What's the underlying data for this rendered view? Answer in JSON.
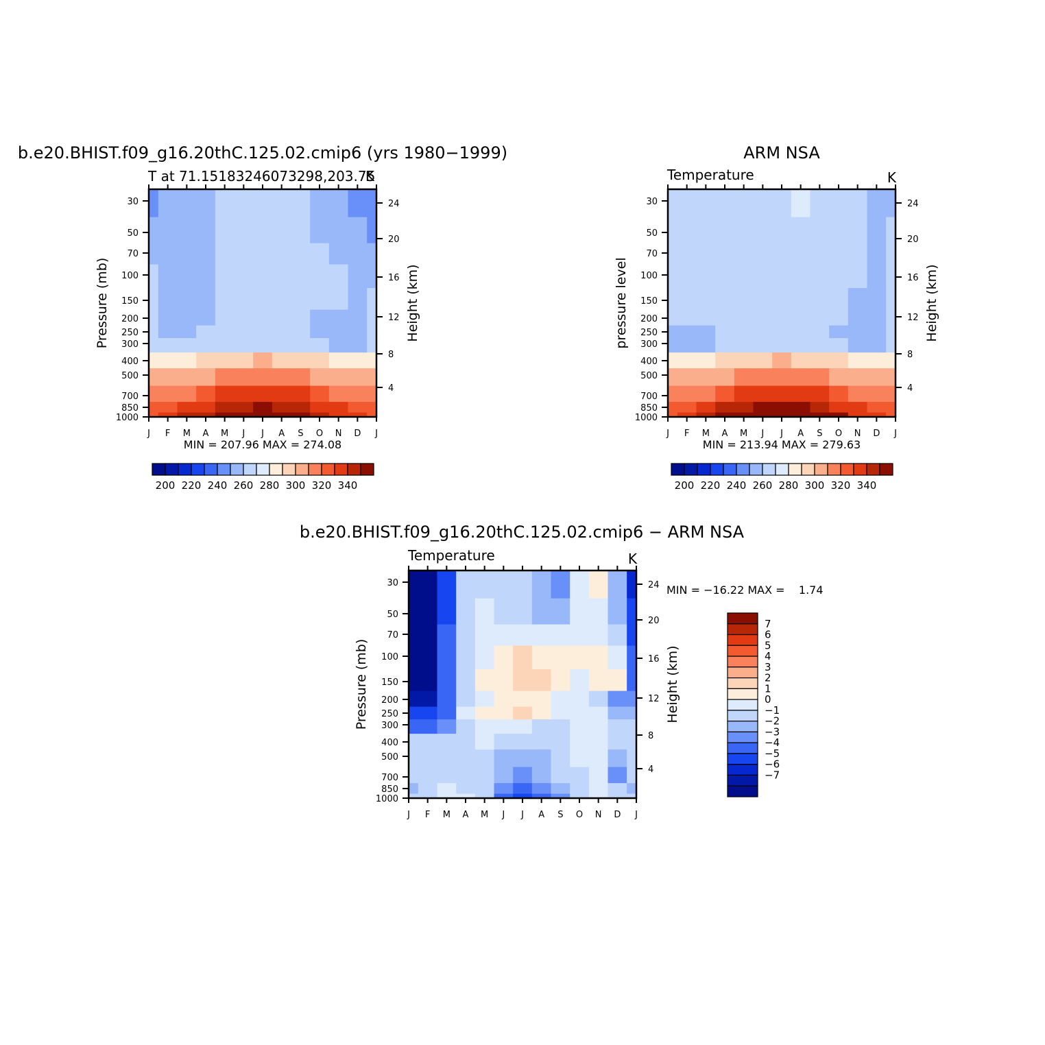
{
  "palette": [
    "#000e8c",
    "#0219a8",
    "#0628d0",
    "#1746f0",
    "#3a66f5",
    "#6890f8",
    "#98b8fa",
    "#c1d6fb",
    "#deebfc",
    "#fdeedc",
    "#fcd4b8",
    "#fbae8c",
    "#f9825c",
    "#f45a30",
    "#e23a12",
    "#b82608",
    "#8a0e02"
  ],
  "chart_data": [
    {
      "type": "contour",
      "title": "b.e20.BHIST.f09_g16.20thC.125.02.cmip6 (yrs 1980−1999)",
      "subtitle_left": "T at 71.15183246073298,203.75",
      "subtitle_right": "K",
      "ylabel": "Pressure (mb)",
      "ylabel_right": "Height (km)",
      "x_ticks": [
        "J",
        "F",
        "M",
        "A",
        "M",
        "J",
        "J",
        "A",
        "S",
        "O",
        "N",
        "D",
        "J"
      ],
      "y_ticks": [
        "30",
        "50",
        "70",
        "100",
        "150",
        "200",
        "250",
        "300",
        "400",
        "500",
        "700",
        "850",
        "1000"
      ],
      "y_ticks_right": [
        "24",
        "20",
        "16",
        "12",
        "8",
        "4"
      ],
      "minmax": "MIN = 207.96 MAX = 274.08",
      "colorbar_labels": [
        "200",
        "220",
        "240",
        "260",
        "280",
        "300",
        "320",
        "340"
      ],
      "x": [
        1,
        2,
        3,
        4,
        5,
        6,
        7,
        8,
        9,
        10,
        11,
        12,
        13
      ],
      "levels_mb": [
        1000,
        850,
        700,
        500,
        400,
        300,
        250,
        200,
        150,
        100,
        70,
        50,
        30
      ],
      "values": [
        [
          259,
          262,
          266,
          269,
          271,
          273,
          274,
          273,
          270,
          267,
          264,
          261,
          259
        ],
        [
          255,
          257,
          261,
          264,
          267,
          269,
          270,
          269,
          266,
          263,
          260,
          257,
          255
        ],
        [
          251,
          251,
          254,
          258,
          261,
          263,
          264,
          263,
          260,
          257,
          253,
          250,
          251
        ],
        [
          245,
          245,
          247,
          249,
          251,
          253,
          254,
          253,
          251,
          249,
          247,
          245,
          245
        ],
        [
          238,
          238,
          238,
          240,
          242,
          244,
          245,
          244,
          242,
          240,
          238,
          237,
          238
        ],
        [
          226,
          225,
          225,
          226,
          229,
          229,
          228,
          228,
          227,
          226,
          224,
          224,
          226
        ],
        [
          225,
          224,
          224,
          225,
          229,
          229,
          229,
          228,
          226,
          224,
          222,
          222,
          225
        ],
        [
          225,
          224,
          224,
          224,
          229,
          229,
          229,
          229,
          228,
          224,
          222,
          222,
          225
        ],
        [
          225,
          224,
          224,
          224,
          228,
          229,
          229,
          229,
          228,
          227,
          226,
          222,
          225
        ],
        [
          225,
          224,
          224,
          224,
          228,
          228,
          228,
          228,
          228,
          228,
          226,
          223,
          224
        ],
        [
          224,
          224,
          224,
          224,
          228,
          228,
          228,
          228,
          228,
          226,
          224,
          222,
          221
        ],
        [
          222,
          224,
          224,
          224,
          228,
          228,
          228,
          228,
          228,
          224,
          222,
          220,
          218
        ],
        [
          219,
          223,
          224,
          224,
          228,
          228,
          228,
          228,
          228,
          224,
          222,
          219,
          217
        ]
      ],
      "contour_levels": [
        195,
        200,
        205,
        210,
        215,
        220,
        225,
        230,
        235,
        240,
        245,
        250,
        255,
        260,
        265,
        270,
        275
      ]
    },
    {
      "type": "contour",
      "title": "ARM NSA",
      "subtitle_left": "Temperature",
      "subtitle_right": "K",
      "ylabel": "pressure level",
      "ylabel_right": "Height (km)",
      "x_ticks": [
        "J",
        "F",
        "M",
        "A",
        "M",
        "J",
        "J",
        "A",
        "S",
        "O",
        "N",
        "D",
        "J"
      ],
      "y_ticks": [
        "30",
        "50",
        "70",
        "100",
        "150",
        "200",
        "250",
        "300",
        "400",
        "500",
        "700",
        "850",
        "1000"
      ],
      "y_ticks_right": [
        "24",
        "20",
        "16",
        "12",
        "8",
        "4"
      ],
      "minmax": "MIN = 213.94 MAX = 279.63",
      "colorbar_labels": [
        "200",
        "220",
        "240",
        "260",
        "280",
        "300",
        "320",
        "340"
      ],
      "x": [
        1,
        2,
        3,
        4,
        5,
        6,
        7,
        8,
        9,
        10,
        11,
        12,
        13
      ],
      "levels_mb": [
        1000,
        850,
        700,
        500,
        400,
        300,
        250,
        200,
        150,
        100,
        70,
        50,
        30
      ],
      "values": [
        [
          258,
          262,
          266,
          270,
          273,
          276,
          278,
          277,
          275,
          270,
          264,
          260,
          258
        ],
        [
          255,
          257,
          261,
          265,
          268,
          271,
          272,
          271,
          268,
          264,
          260,
          257,
          255
        ],
        [
          252,
          252,
          254,
          257,
          261,
          263,
          264,
          263,
          261,
          258,
          254,
          252,
          252
        ],
        [
          246,
          246,
          247,
          249,
          251,
          253,
          254,
          253,
          251,
          249,
          247,
          246,
          246
        ],
        [
          239,
          239,
          239,
          240,
          242,
          244,
          245,
          244,
          242,
          240,
          238,
          238,
          239
        ],
        [
          223,
          222,
          222,
          226,
          229,
          229,
          229,
          229,
          228,
          225,
          224,
          224,
          226
        ],
        [
          224,
          222,
          222,
          226,
          229,
          229,
          229,
          229,
          228,
          224,
          224,
          224,
          226
        ],
        [
          225,
          225,
          226,
          228,
          229,
          229,
          229,
          229,
          229,
          225,
          224,
          224,
          226
        ],
        [
          228,
          228,
          228,
          228,
          229,
          229,
          229,
          229,
          229,
          229,
          224,
          224,
          226
        ],
        [
          228,
          228,
          228,
          228,
          229,
          229,
          229,
          229,
          229,
          229,
          225,
          224,
          226
        ],
        [
          228,
          228,
          228,
          228,
          229,
          229,
          229,
          229,
          229,
          229,
          225,
          224,
          226
        ],
        [
          228,
          228,
          228,
          228,
          229,
          229,
          229,
          229,
          229,
          229,
          225,
          224,
          225
        ],
        [
          228,
          228,
          228,
          228,
          229,
          229,
          229,
          230,
          229,
          229,
          225,
          224,
          224
        ]
      ],
      "contour_levels": [
        195,
        200,
        205,
        210,
        215,
        220,
        225,
        230,
        235,
        240,
        245,
        250,
        255,
        260,
        265,
        270,
        275
      ]
    },
    {
      "type": "contour",
      "title": "b.e20.BHIST.f09_g16.20thC.125.02.cmip6 − ARM NSA",
      "subtitle_left": "Temperature",
      "subtitle_right": "K",
      "ylabel": "Pressure (mb)",
      "ylabel_right": "Height (km)",
      "x_ticks": [
        "J",
        "F",
        "M",
        "A",
        "M",
        "J",
        "J",
        "A",
        "S",
        "O",
        "N",
        "D",
        "J"
      ],
      "y_ticks": [
        "30",
        "50",
        "70",
        "100",
        "150",
        "200",
        "250",
        "300",
        "400",
        "500",
        "700",
        "850",
        "1000"
      ],
      "y_ticks_right": [
        "24",
        "20",
        "16",
        "12",
        "8",
        "4"
      ],
      "minmax": "MIN = −16.22 MAX =    1.74",
      "colorbar_labels": [
        "7",
        "6",
        "5",
        "4",
        "3",
        "2",
        "1",
        "0",
        "−1",
        "−2",
        "−3",
        "−4",
        "−5",
        "−6",
        "−7"
      ],
      "x": [
        1,
        2,
        3,
        4,
        5,
        6,
        7,
        8,
        9,
        10,
        11,
        12,
        13
      ],
      "levels_mb": [
        1000,
        850,
        700,
        500,
        400,
        300,
        250,
        200,
        150,
        100,
        70,
        50,
        30
      ],
      "values": [
        [
          -1.5,
          -1.5,
          -0.5,
          -1.0,
          -1.5,
          -4.5,
          -5.5,
          -5.0,
          -3.5,
          -2.0,
          -0.5,
          -1.5,
          -1.5
        ],
        [
          -2.5,
          -1.5,
          -1.0,
          -1.5,
          -2.0,
          -3.5,
          -4.5,
          -4.0,
          -3.0,
          -1.5,
          -0.5,
          -2.0,
          -2.5
        ],
        [
          -2.0,
          -2.0,
          -1.5,
          -1.5,
          -2.0,
          -3.0,
          -3.5,
          -3.0,
          -2.0,
          -1.5,
          -1.0,
          -3.5,
          -2.0
        ],
        [
          -2.0,
          -2.0,
          -2.0,
          -1.5,
          -1.5,
          -2.5,
          -2.5,
          -2.5,
          -1.5,
          -0.5,
          -1.0,
          -2.5,
          -2.0
        ],
        [
          -2.0,
          -2.0,
          -2.0,
          -1.5,
          -1.0,
          -1.5,
          -2.0,
          -2.0,
          -1.5,
          -0.5,
          -0.5,
          -2.0,
          -2.0
        ],
        [
          -5.0,
          -5.0,
          -4.0,
          -1.5,
          -1.0,
          -1.0,
          -0.5,
          -1.5,
          -1.5,
          -0.5,
          -1.0,
          -1.5,
          -2.0
        ],
        [
          -6.0,
          -5.5,
          -4.5,
          -1.0,
          0.5,
          0.5,
          1.5,
          0.5,
          -1.0,
          -1.0,
          -1.0,
          -3.0,
          -3.0
        ],
        [
          -8.0,
          -8.0,
          -5.0,
          -1.5,
          -0.5,
          0.5,
          0.5,
          0.5,
          -0.5,
          -1.0,
          -1.5,
          -4.0,
          -3.5
        ],
        [
          -9.0,
          -9.0,
          -5.0,
          -2.0,
          0.0,
          0.5,
          1.5,
          1.0,
          0.0,
          -0.5,
          0.5,
          0.0,
          -5.0
        ],
        [
          -10.0,
          -10.0,
          -5.0,
          -1.5,
          -0.5,
          0.5,
          1.0,
          0.5,
          0.0,
          0.0,
          0.5,
          -0.5,
          -5.0
        ],
        [
          -11.0,
          -11.0,
          -5.0,
          -2.0,
          -1.0,
          -0.5,
          -1.0,
          -1.0,
          -0.5,
          -0.5,
          -1.0,
          -1.5,
          -6.0
        ],
        [
          -13.0,
          -13.0,
          -5.5,
          -2.0,
          -1.0,
          -1.5,
          -1.5,
          -3.0,
          -2.5,
          -1.0,
          -1.0,
          -2.5,
          -6.0
        ],
        [
          -15.0,
          -16.2,
          -6.0,
          -2.0,
          -1.5,
          -1.5,
          -2.0,
          -3.0,
          -3.5,
          -1.0,
          0.5,
          -3.0,
          -6.5
        ]
      ],
      "contour_levels": [
        -8,
        -7,
        -6,
        -5,
        -4,
        -3,
        -2,
        -1,
        0,
        1,
        2,
        3,
        4,
        5,
        6,
        7
      ]
    }
  ]
}
